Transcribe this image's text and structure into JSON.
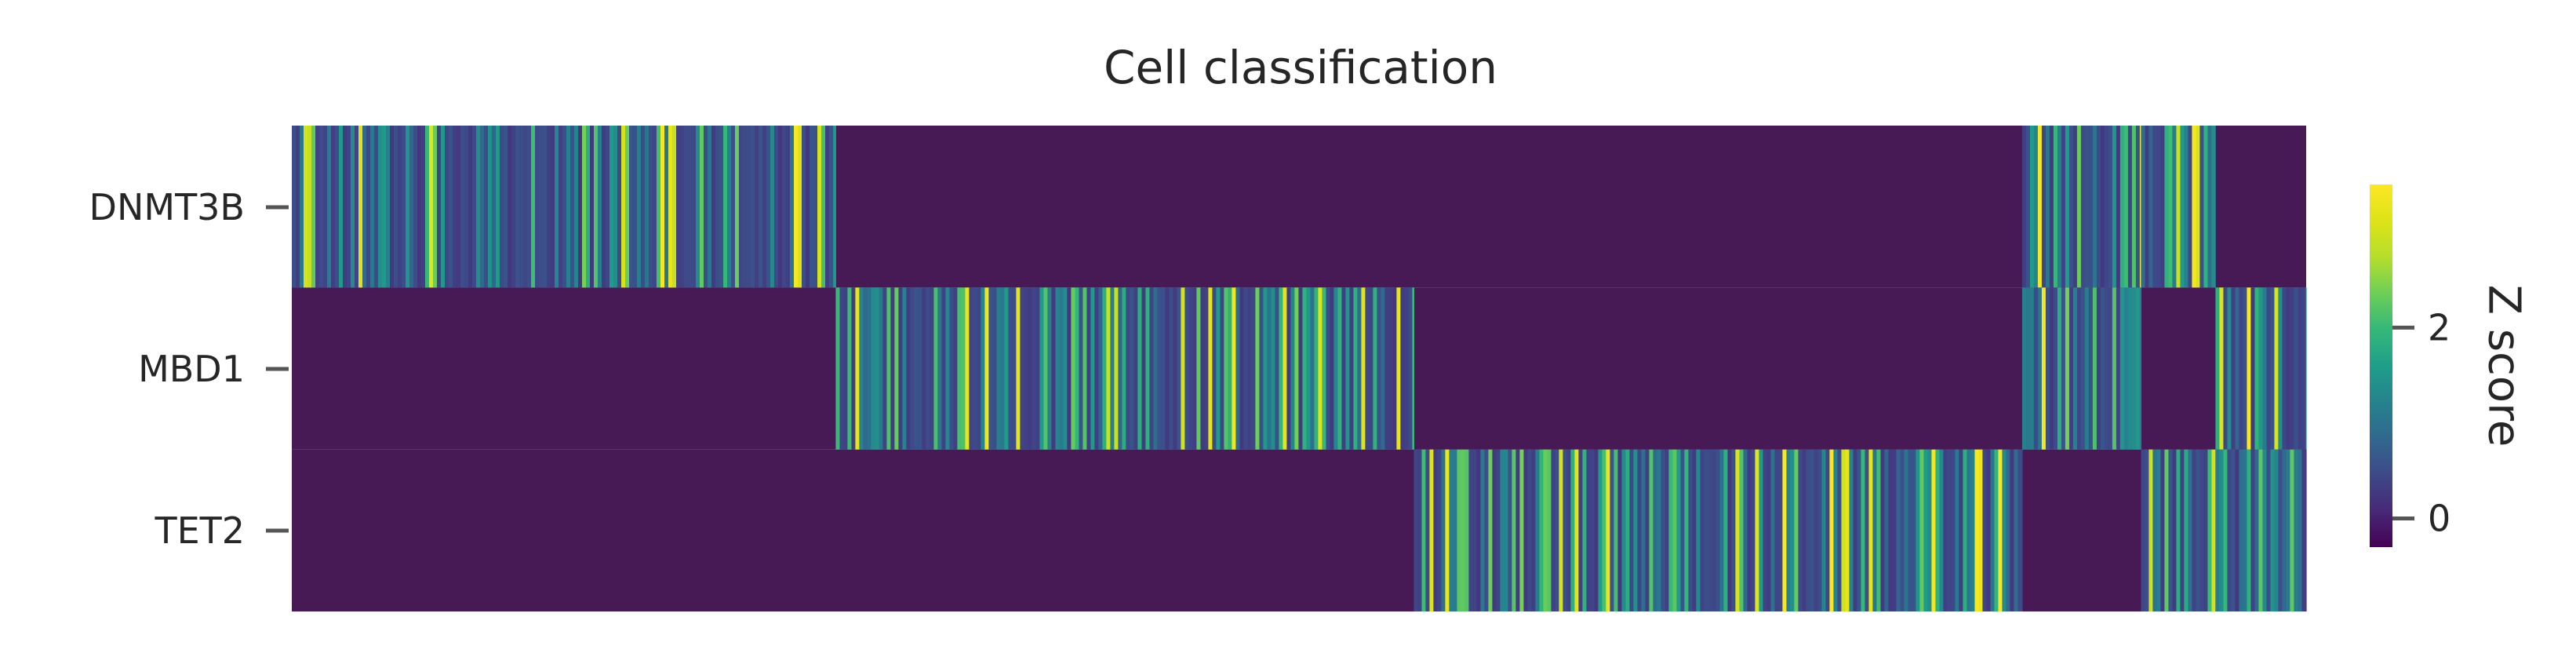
{
  "chart_data": {
    "type": "heatmap",
    "title": "Cell classification",
    "rows": [
      "DNMT3B",
      "MBD1",
      "TET2"
    ],
    "colormap": "viridis",
    "color_range": [
      -0.3,
      3.5
    ],
    "colorbar": {
      "label": "Z score",
      "ticks": [
        0,
        2
      ]
    },
    "background_value": -0.3,
    "cell_groups": [
      {
        "group": 1,
        "expressed_rows": [
          "DNMT3B"
        ],
        "fraction_of_cells": 0.27
      },
      {
        "group": 2,
        "expressed_rows": [
          "MBD1"
        ],
        "fraction_of_cells": 0.287
      },
      {
        "group": 3,
        "expressed_rows": [
          "TET2"
        ],
        "fraction_of_cells": 0.302
      },
      {
        "group": 4,
        "expressed_rows": [
          "DNMT3B",
          "MBD1"
        ],
        "fraction_of_cells": 0.059
      },
      {
        "group": 5,
        "expressed_rows": [
          "DNMT3B",
          "TET2"
        ],
        "fraction_of_cells": 0.037
      },
      {
        "group": 6,
        "expressed_rows": [
          "MBD1",
          "TET2"
        ],
        "fraction_of_cells": 0.045
      }
    ]
  },
  "colors": {
    "background_cell": "#481a55",
    "text": "#262626",
    "tick": "#555555"
  }
}
